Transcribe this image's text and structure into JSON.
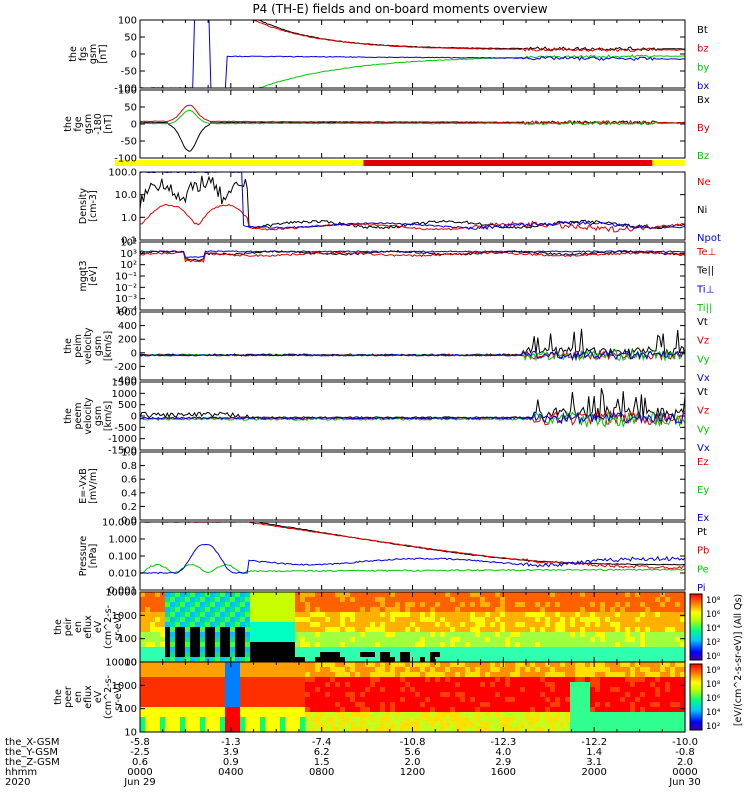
{
  "title": "P4 (TH-E) fields and on-board moments overview",
  "colors": {
    "black": "#000000",
    "red": "#e00000",
    "green": "#00c800",
    "blue": "#0000e0",
    "yellow": "#ffff00"
  },
  "chart_data": {
    "type": "line",
    "title": "P4 (TH-E) fields and on-board moments overview",
    "panels": [
      {
        "id": "fgs",
        "ylabel": [
          "the",
          "fgs",
          "gsm",
          "[nT]"
        ],
        "ylim": [
          -100,
          100
        ],
        "ticks": [
          "100",
          "50",
          "0",
          "-50",
          "-100"
        ],
        "tick_values": [
          100,
          50,
          0,
          -50,
          -100
        ],
        "legend": [
          {
            "name": "Bt",
            "color": "#000000"
          },
          {
            "name": "bz",
            "color": "#e00000"
          },
          {
            "name": "by",
            "color": "#00c800"
          },
          {
            "name": "bx",
            "color": "#0000e0"
          }
        ]
      },
      {
        "id": "fge",
        "ylabel": [
          "the",
          "fge",
          "gsm",
          "-180",
          "[nT]"
        ],
        "ylim": [
          -125,
          125
        ],
        "ticks": [
          "100",
          "50",
          "0",
          "-50",
          "-100"
        ],
        "tick_values": [
          100,
          50,
          0,
          -50,
          -100
        ],
        "legend": [
          {
            "name": "Bx",
            "color": "#000000"
          },
          {
            "name": "By",
            "color": "#e00000"
          },
          {
            "name": "Bz",
            "color": "#00c800"
          }
        ]
      },
      {
        "id": "density",
        "ylabel": [
          "Density",
          "[cm-3]"
        ],
        "scale": "log",
        "ylim": [
          0.1,
          100
        ],
        "ticks": [
          "100.0",
          "10.0",
          "1.0",
          "0.1"
        ],
        "tick_values": [
          100,
          10,
          1,
          0.1
        ],
        "legend": [
          {
            "name": "Ne",
            "color": "#e00000"
          },
          {
            "name": "Ni",
            "color": "#000000"
          },
          {
            "name": "Npot",
            "color": "#0000e0"
          }
        ]
      },
      {
        "id": "temp",
        "ylabel": [
          "mgqt3",
          "[eV]"
        ],
        "scale": "log",
        "ticks": [
          "10⁴",
          "10³",
          "10²",
          "10⁻¹",
          "10⁻²",
          "10⁻³",
          "10⁻⁴"
        ],
        "legend": [
          {
            "name": "Te⊥",
            "color": "#e00000"
          },
          {
            "name": "Te||",
            "color": "#000000"
          },
          {
            "name": "Ti⊥",
            "color": "#0000e0"
          },
          {
            "name": "Ti||",
            "color": "#00c800"
          }
        ]
      },
      {
        "id": "peim",
        "ylabel": [
          "the",
          "peim",
          "velocity",
          "gsm",
          "[km/s]"
        ],
        "ylim": [
          -400,
          700
        ],
        "ticks": [
          "600",
          "400",
          "200",
          "0",
          "-200",
          "-400"
        ],
        "tick_values": [
          600,
          400,
          200,
          0,
          -200,
          -400
        ],
        "legend": [
          {
            "name": "Vt",
            "color": "#000000"
          },
          {
            "name": "Vz",
            "color": "#e00000"
          },
          {
            "name": "Vy",
            "color": "#00c800"
          },
          {
            "name": "Vx",
            "color": "#0000e0"
          }
        ]
      },
      {
        "id": "peem",
        "ylabel": [
          "the",
          "peem",
          "velocity",
          "gsm",
          "[km/s]"
        ],
        "ylim": [
          -1500,
          1700
        ],
        "ticks": [
          "1500",
          "1000",
          "500",
          "0",
          "-500",
          "-1000",
          "-1500"
        ],
        "tick_values": [
          1500,
          1000,
          500,
          0,
          -500,
          -1000,
          -1500
        ],
        "legend": [
          {
            "name": "Vt",
            "color": "#000000"
          },
          {
            "name": "Vz",
            "color": "#e00000"
          },
          {
            "name": "Vy",
            "color": "#00c800"
          },
          {
            "name": "Vx",
            "color": "#0000e0"
          }
        ]
      },
      {
        "id": "efield",
        "ylabel": [
          "E=-VxB",
          "[mV/m]"
        ],
        "ylim": [
          0,
          1
        ],
        "ticks": [
          "1.0",
          "0.8",
          "0.6",
          "0.4",
          "0.2",
          "0.0"
        ],
        "tick_values": [
          1,
          0.8,
          0.6,
          0.4,
          0.2,
          0
        ],
        "legend": [
          {
            "name": "Ez",
            "color": "#e00000"
          },
          {
            "name": "Ey",
            "color": "#00c800"
          },
          {
            "name": "Ex",
            "color": "#0000e0"
          }
        ]
      },
      {
        "id": "pressure",
        "ylabel": [
          "Pressure",
          "[nPa]"
        ],
        "scale": "log",
        "ylim": [
          0.001,
          10
        ],
        "ticks": [
          "10.000",
          "1.000",
          "0.100",
          "0.010",
          "0.001"
        ],
        "tick_values": [
          10,
          1,
          0.1,
          0.01,
          0.001
        ],
        "legend": [
          {
            "name": "Pt",
            "color": "#000000"
          },
          {
            "name": "Pb",
            "color": "#e00000"
          },
          {
            "name": "Pe",
            "color": "#00c800"
          },
          {
            "name": "Pi",
            "color": "#0000e0"
          }
        ]
      },
      {
        "id": "peir",
        "type": "heatmap",
        "ylabel": [
          "the",
          "peir",
          "en",
          "eflux",
          "eV",
          "(cm^2-s-",
          "sr-eV)"
        ],
        "ticks": [
          "10000",
          "1000",
          "100",
          "10"
        ],
        "tick_values": [
          10000,
          1000,
          100,
          10
        ],
        "colorbar_ticks": [
          "10⁸",
          "10⁶",
          "10⁴",
          "10²",
          "10⁰"
        ]
      },
      {
        "id": "peer",
        "type": "heatmap",
        "ylabel": [
          "the",
          "peer",
          "en",
          "eflux",
          "eV",
          "(cm^2-s-",
          "sr-eV)"
        ],
        "ticks": [
          "10000",
          "1000",
          "100",
          "10"
        ],
        "tick_values": [
          10000,
          1000,
          100,
          10
        ],
        "colorbar_ticks": [
          "10⁹",
          "10⁸",
          "10⁶",
          "10⁴",
          "10²"
        ]
      }
    ],
    "colorbar_label": "[eV/(cm^2-s-sr-eV)] (All Qs)",
    "x_axis": {
      "row_labels": [
        "the_X-GSM",
        "the_Y-GSM",
        "the_Z-GSM",
        "hhmm",
        "2020"
      ],
      "columns": [
        {
          "x": "0000",
          "vals": [
            "-5.8",
            "-2.5",
            "0.6",
            "0000",
            "Jun 29"
          ]
        },
        {
          "x": "0400",
          "vals": [
            "-1.3",
            "3.9",
            "0.9",
            "0400",
            ""
          ]
        },
        {
          "x": "0800",
          "vals": [
            "-7.4",
            "6.2",
            "1.5",
            "0800",
            ""
          ]
        },
        {
          "x": "1200",
          "vals": [
            "-10.8",
            "5.6",
            "2.0",
            "1200",
            ""
          ]
        },
        {
          "x": "1600",
          "vals": [
            "-12.3",
            "4.0",
            "2.9",
            "1600",
            ""
          ]
        },
        {
          "x": "2000",
          "vals": [
            "-12.2",
            "1.4",
            "3.1",
            "2000",
            ""
          ]
        },
        {
          "x": "0000",
          "vals": [
            "-10.0",
            "-0.8",
            "2.0",
            "0000",
            "Jun 30"
          ]
        }
      ]
    }
  }
}
